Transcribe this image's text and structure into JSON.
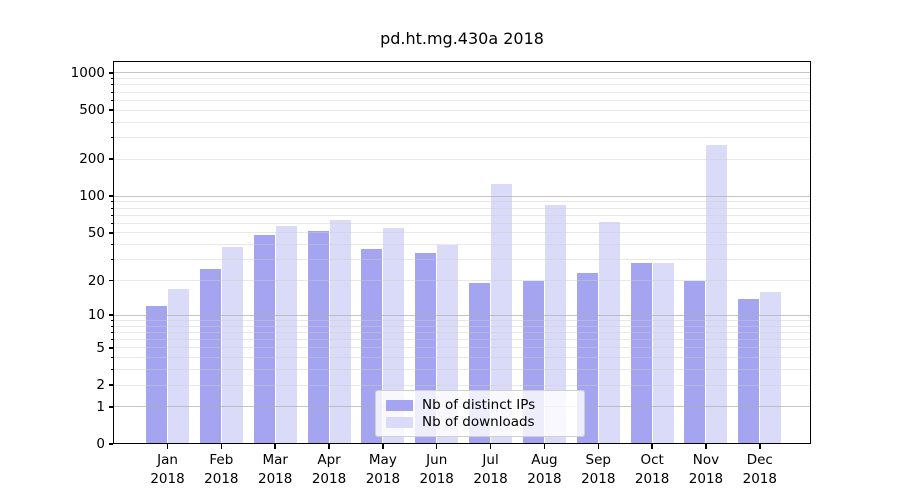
{
  "title": "pd.ht.mg.430a 2018",
  "chart_data": {
    "type": "bar",
    "title": "pd.ht.mg.430a 2018",
    "x_categories": [
      "Jan",
      "Feb",
      "Mar",
      "Apr",
      "May",
      "Jun",
      "Jul",
      "Aug",
      "Sep",
      "Oct",
      "Nov",
      "Dec"
    ],
    "x_year": "2018",
    "series": [
      {
        "name": "Nb of distinct IPs",
        "color": "#a4a4f0",
        "values": [
          12,
          25,
          48,
          52,
          37,
          34,
          19,
          20,
          23,
          28,
          20,
          14
        ]
      },
      {
        "name": "Nb of downloads",
        "color": "#dadaf9",
        "values": [
          17,
          38,
          57,
          64,
          55,
          40,
          126,
          84,
          62,
          28,
          260,
          16
        ]
      }
    ],
    "yscale": "log1p",
    "ytick_labels": [
      0,
      1,
      2,
      5,
      10,
      20,
      50,
      100,
      200,
      500,
      1000
    ],
    "ylim": [
      0,
      1200
    ],
    "grid": true,
    "legend_position": "lower center"
  },
  "legend": {
    "item_ips": "Nb of distinct IPs",
    "item_downloads": "Nb of downloads"
  },
  "colors": {
    "ips_bar": "#a4a4f0",
    "downloads_bar": "#dadaf9",
    "spine": "#000000",
    "grid_major": "#acacac",
    "grid_minor": "#cdcdcd",
    "background": "#ffffff"
  }
}
